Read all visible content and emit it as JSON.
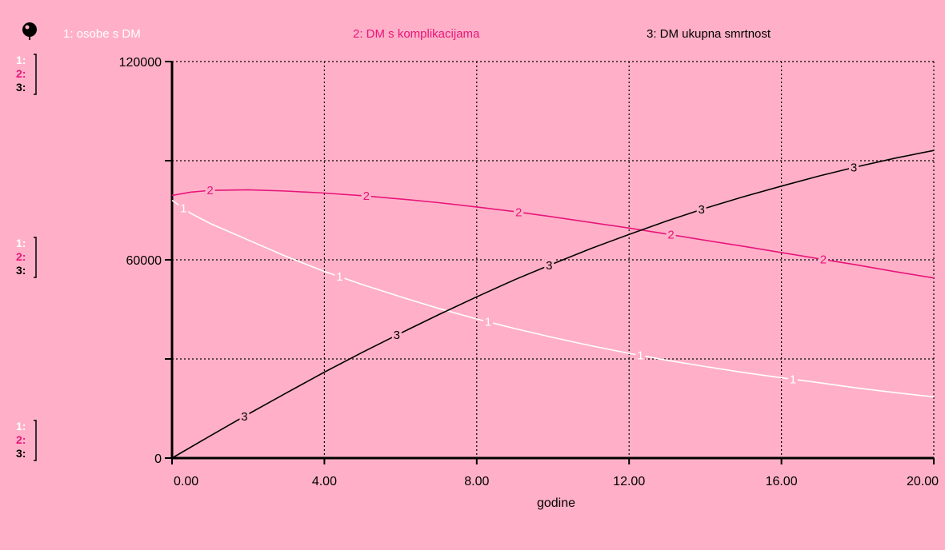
{
  "colors": {
    "background": "#ffb0c8",
    "series1": "#ffffff",
    "series2": "#e8157a",
    "series3": "#000000",
    "grid": "#000000"
  },
  "icons": {
    "corner": "pin-icon"
  },
  "legend": [
    {
      "index": "1",
      "label": "1: osobe s DM",
      "color": "#ffffff"
    },
    {
      "index": "2",
      "label": "2: DM s komplikacijama",
      "color": "#e8157a"
    },
    {
      "index": "3",
      "label": "3: DM ukupna smrtnost",
      "color": "#000000"
    }
  ],
  "side_labels": [
    "1:",
    "2:",
    "3:"
  ],
  "chart_data": {
    "type": "line",
    "xlabel": "godine",
    "ylabel": "",
    "xlim": [
      0,
      20
    ],
    "ylim": [
      0,
      120000
    ],
    "x_ticks": [
      "0.00",
      "4.00",
      "8.00",
      "12.00",
      "16.00",
      "20.00"
    ],
    "y_ticks": [
      "0",
      "60000",
      "120000"
    ],
    "grid": true,
    "legend_position": "top",
    "series": [
      {
        "name": "osobe s DM",
        "marker": "1",
        "color": "#ffffff",
        "x": [
          0,
          0.5,
          1,
          2,
          3,
          4,
          5,
          6,
          7,
          8,
          9,
          10,
          11,
          12,
          13,
          14,
          15,
          16,
          17,
          18,
          19,
          20
        ],
        "y": [
          78000,
          74000,
          71000,
          66000,
          61000,
          56500,
          52500,
          48800,
          45300,
          42100,
          39200,
          36500,
          34000,
          31700,
          29600,
          27700,
          25900,
          24300,
          22800,
          21200,
          19800,
          18500
        ],
        "markers_at": [
          0.3,
          4.4,
          8.3,
          12.3,
          16.3
        ]
      },
      {
        "name": "DM s komplikacijama",
        "marker": "2",
        "color": "#e8157a",
        "x": [
          0,
          0.5,
          1,
          2,
          3,
          4,
          5,
          6,
          7,
          8,
          9,
          10,
          11,
          12,
          13,
          14,
          15,
          16,
          17,
          18,
          19,
          20
        ],
        "y": [
          79500,
          80500,
          81000,
          81200,
          80800,
          80200,
          79400,
          78400,
          77300,
          76000,
          74600,
          73000,
          71300,
          69600,
          67800,
          65900,
          64100,
          62200,
          60300,
          58400,
          56400,
          54500
        ],
        "markers_at": [
          1.0,
          5.1,
          9.1,
          13.1,
          17.1
        ]
      },
      {
        "name": "DM ukupna smrtnost",
        "marker": "3",
        "color": "#000000",
        "x": [
          0,
          1,
          2,
          3,
          4,
          5,
          6,
          7,
          8,
          9,
          10,
          11,
          12,
          13,
          14,
          15,
          16,
          17,
          18,
          19,
          20
        ],
        "y": [
          0,
          6700,
          13300,
          19700,
          26000,
          32000,
          37800,
          43400,
          48800,
          54000,
          58800,
          63400,
          67700,
          71800,
          75600,
          79100,
          82300,
          85400,
          88200,
          90800,
          93100
        ],
        "markers_at": [
          1.9,
          5.9,
          9.9,
          13.9,
          17.9
        ]
      }
    ]
  }
}
